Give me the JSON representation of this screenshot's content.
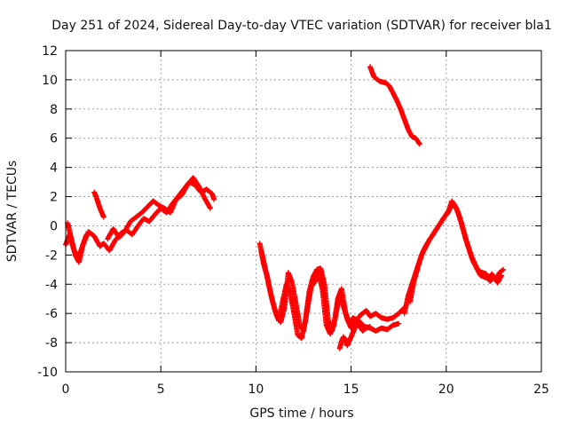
{
  "chart_data": {
    "type": "scatter",
    "title": "Day 251 of 2024, Sidereal Day-to-day VTEC variation (SDTVAR) for receiver bla1",
    "xlabel": "GPS time / hours",
    "ylabel": "SDTVAR / TECUs",
    "xlim": [
      0,
      25
    ],
    "ylim": [
      -10,
      12
    ],
    "xticks": [
      0,
      5,
      10,
      15,
      20,
      25
    ],
    "yticks": [
      -10,
      -8,
      -6,
      -4,
      -2,
      0,
      2,
      4,
      6,
      8,
      10,
      12
    ],
    "grid": true,
    "marker": "+",
    "series": [
      {
        "name": "SDTVAR",
        "color": "#ff0000",
        "segments": [
          [
            [
              0.0,
              -1.3
            ],
            [
              0.2,
              -0.6
            ],
            [
              0.4,
              -1.5
            ],
            [
              0.6,
              -2.2
            ],
            [
              0.8,
              -1.7
            ],
            [
              1.0,
              -1.0
            ],
            [
              1.2,
              -0.4
            ],
            [
              1.5,
              -0.7
            ],
            [
              1.8,
              -1.4
            ],
            [
              2.0,
              -1.2
            ],
            [
              2.3,
              -1.7
            ],
            [
              2.6,
              -1.0
            ],
            [
              2.9,
              -0.5
            ],
            [
              3.2,
              -0.3
            ],
            [
              3.5,
              -0.6
            ],
            [
              3.8,
              0.0
            ],
            [
              4.1,
              0.5
            ],
            [
              4.4,
              0.3
            ],
            [
              4.7,
              0.8
            ],
            [
              5.0,
              1.2
            ],
            [
              5.3,
              0.9
            ],
            [
              5.6,
              1.5
            ],
            [
              5.9,
              2.0
            ],
            [
              6.2,
              2.5
            ],
            [
              6.5,
              3.0
            ],
            [
              6.8,
              2.8
            ],
            [
              7.1,
              2.3
            ],
            [
              7.4,
              2.5
            ],
            [
              7.7,
              2.2
            ],
            [
              7.8,
              1.8
            ]
          ],
          [
            [
              0.1,
              0.2
            ],
            [
              0.3,
              -0.9
            ],
            [
              0.5,
              -2.0
            ],
            [
              0.7,
              -2.5
            ],
            [
              0.9,
              -1.3
            ],
            [
              1.1,
              -0.6
            ]
          ],
          [
            [
              1.5,
              2.3
            ],
            [
              1.6,
              2.0
            ],
            [
              1.7,
              1.6
            ],
            [
              1.8,
              1.2
            ],
            [
              1.9,
              0.9
            ],
            [
              2.0,
              0.6
            ]
          ],
          [
            [
              2.2,
              -0.9
            ],
            [
              2.5,
              -0.2
            ],
            [
              2.8,
              -0.8
            ],
            [
              3.1,
              -0.4
            ],
            [
              3.4,
              0.3
            ],
            [
              3.7,
              0.6
            ],
            [
              4.0,
              0.9
            ],
            [
              4.3,
              1.3
            ],
            [
              4.6,
              1.7
            ],
            [
              4.9,
              1.4
            ],
            [
              5.2,
              1.2
            ],
            [
              5.5,
              0.9
            ],
            [
              5.8,
              1.8
            ],
            [
              6.1,
              2.1
            ],
            [
              6.4,
              2.8
            ],
            [
              6.7,
              3.3
            ],
            [
              7.0,
              2.7
            ],
            [
              7.3,
              1.9
            ],
            [
              7.6,
              1.2
            ]
          ],
          [
            [
              10.2,
              -1.2
            ],
            [
              10.4,
              -2.6
            ],
            [
              10.6,
              -3.5
            ],
            [
              10.8,
              -4.8
            ],
            [
              11.0,
              -5.8
            ],
            [
              11.2,
              -6.5
            ],
            [
              11.4,
              -5.2
            ],
            [
              11.6,
              -4.0
            ],
            [
              11.8,
              -4.6
            ],
            [
              12.0,
              -6.0
            ],
            [
              12.2,
              -7.5
            ],
            [
              12.4,
              -7.7
            ],
            [
              12.6,
              -6.5
            ],
            [
              12.8,
              -4.5
            ],
            [
              13.0,
              -3.5
            ],
            [
              13.2,
              -3.0
            ],
            [
              13.4,
              -2.9
            ],
            [
              13.6,
              -4.0
            ],
            [
              13.8,
              -6.5
            ],
            [
              14.0,
              -7.2
            ],
            [
              14.2,
              -6.1
            ],
            [
              14.4,
              -4.6
            ],
            [
              14.6,
              -5.5
            ],
            [
              14.8,
              -6.4
            ],
            [
              15.0,
              -7.0
            ],
            [
              15.2,
              -6.6
            ],
            [
              15.5,
              -6.1
            ],
            [
              15.8,
              -5.8
            ],
            [
              16.0,
              -6.2
            ],
            [
              16.3,
              -6.0
            ],
            [
              16.6,
              -6.3
            ],
            [
              16.9,
              -6.4
            ],
            [
              17.2,
              -6.3
            ],
            [
              17.5,
              -6.0
            ],
            [
              17.8,
              -5.6
            ]
          ],
          [
            [
              10.3,
              -1.8
            ],
            [
              10.5,
              -3.0
            ],
            [
              10.7,
              -4.2
            ],
            [
              10.9,
              -5.3
            ],
            [
              11.1,
              -6.2
            ],
            [
              11.3,
              -6.6
            ],
            [
              11.5,
              -5.6
            ],
            [
              11.7,
              -3.2
            ],
            [
              11.9,
              -3.9
            ],
            [
              12.1,
              -5.3
            ],
            [
              12.3,
              -6.8
            ],
            [
              12.5,
              -7.2
            ],
            [
              12.7,
              -5.7
            ],
            [
              12.9,
              -4.2
            ],
            [
              13.1,
              -3.8
            ],
            [
              13.3,
              -3.3
            ],
            [
              13.5,
              -4.4
            ],
            [
              13.7,
              -6.8
            ],
            [
              13.9,
              -7.4
            ],
            [
              14.1,
              -6.8
            ],
            [
              14.3,
              -5.0
            ],
            [
              14.5,
              -4.3
            ],
            [
              14.7,
              -5.9
            ],
            [
              14.9,
              -6.7
            ],
            [
              15.1,
              -6.3
            ],
            [
              15.4,
              -6.5
            ],
            [
              15.7,
              -6.9
            ],
            [
              16.0,
              -7.0
            ],
            [
              16.3,
              -7.2
            ],
            [
              16.6,
              -7.0
            ],
            [
              16.9,
              -7.1
            ],
            [
              17.2,
              -6.8
            ],
            [
              17.5,
              -6.7
            ]
          ],
          [
            [
              14.4,
              -8.4
            ],
            [
              14.5,
              -7.9
            ],
            [
              14.6,
              -7.6
            ],
            [
              14.7,
              -7.8
            ],
            [
              14.8,
              -8.2
            ],
            [
              15.0,
              -7.6
            ],
            [
              15.2,
              -7.0
            ],
            [
              15.4,
              -6.7
            ],
            [
              15.6,
              -7.2
            ],
            [
              15.8,
              -7.0
            ],
            [
              16.0,
              -6.9
            ]
          ],
          [
            [
              17.8,
              -6.0
            ],
            [
              18.0,
              -4.8
            ],
            [
              18.2,
              -4.0
            ],
            [
              18.4,
              -3.2
            ],
            [
              18.6,
              -2.4
            ],
            [
              18.8,
              -1.7
            ],
            [
              19.0,
              -1.2
            ],
            [
              19.2,
              -0.8
            ],
            [
              19.4,
              -0.4
            ],
            [
              19.6,
              0.0
            ],
            [
              19.8,
              0.4
            ],
            [
              20.0,
              0.8
            ],
            [
              20.2,
              1.2
            ],
            [
              20.4,
              1.5
            ],
            [
              20.6,
              1.0
            ],
            [
              20.8,
              0.2
            ],
            [
              21.0,
              -0.8
            ],
            [
              21.2,
              -1.6
            ],
            [
              21.4,
              -2.4
            ],
            [
              21.6,
              -2.9
            ],
            [
              21.8,
              -3.4
            ],
            [
              22.0,
              -3.5
            ],
            [
              22.2,
              -3.6
            ],
            [
              22.4,
              -3.3
            ],
            [
              22.6,
              -3.7
            ],
            [
              22.8,
              -3.2
            ],
            [
              23.0,
              -3.0
            ]
          ],
          [
            [
              18.1,
              -5.2
            ],
            [
              18.3,
              -3.8
            ],
            [
              18.5,
              -2.9
            ],
            [
              18.7,
              -2.0
            ],
            [
              18.9,
              -1.5
            ],
            [
              19.1,
              -1.0
            ],
            [
              19.3,
              -0.6
            ],
            [
              19.5,
              -0.2
            ],
            [
              19.7,
              0.2
            ],
            [
              19.9,
              0.6
            ],
            [
              20.1,
              0.9
            ],
            [
              20.3,
              1.7
            ],
            [
              20.5,
              1.3
            ],
            [
              20.7,
              0.6
            ],
            [
              20.9,
              -0.3
            ],
            [
              21.1,
              -1.2
            ],
            [
              21.3,
              -2.0
            ],
            [
              21.5,
              -2.6
            ],
            [
              21.7,
              -3.1
            ],
            [
              21.9,
              -3.2
            ],
            [
              22.1,
              -3.3
            ],
            [
              22.3,
              -3.8
            ],
            [
              22.5,
              -3.5
            ],
            [
              22.7,
              -3.9
            ],
            [
              22.9,
              -3.4
            ]
          ],
          [
            [
              16.0,
              10.9
            ],
            [
              16.2,
              10.2
            ],
            [
              16.5,
              9.9
            ],
            [
              16.8,
              9.8
            ],
            [
              17.0,
              9.6
            ],
            [
              17.2,
              9.1
            ],
            [
              17.4,
              8.6
            ],
            [
              17.6,
              8.0
            ],
            [
              17.8,
              7.3
            ],
            [
              18.0,
              6.6
            ],
            [
              18.2,
              6.1
            ],
            [
              18.4,
              6.0
            ],
            [
              18.6,
              5.6
            ]
          ]
        ]
      }
    ]
  }
}
